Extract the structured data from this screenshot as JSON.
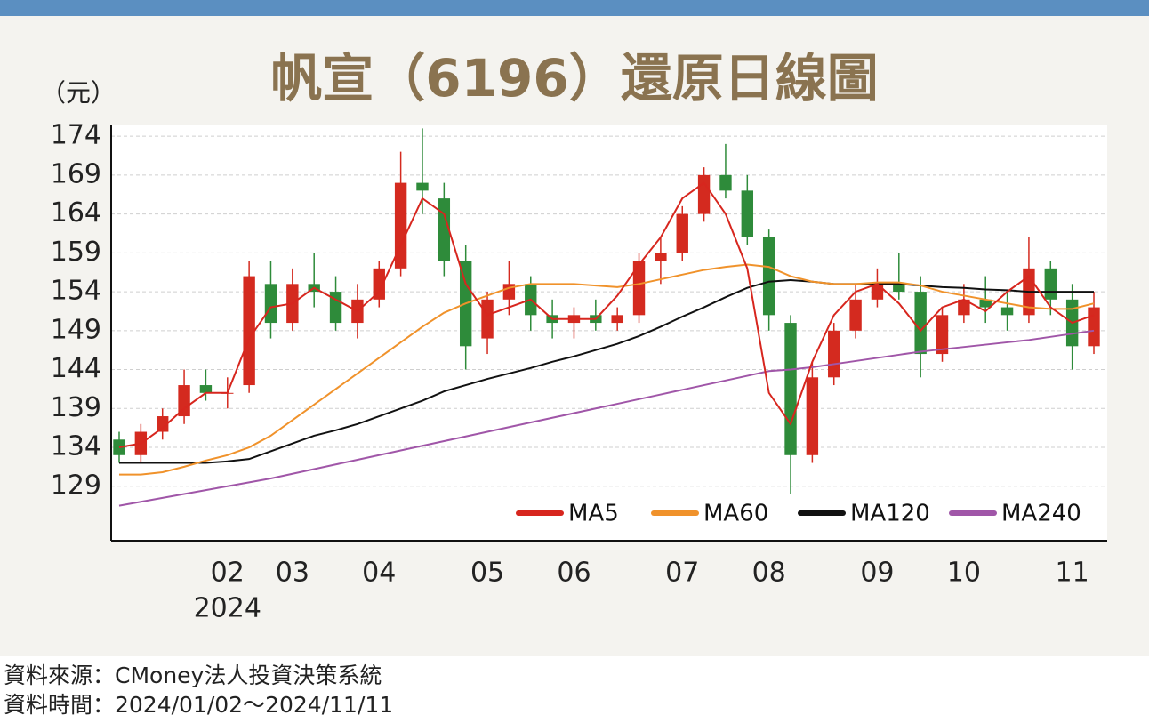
{
  "chart_data": {
    "type": "candlestick",
    "title": "帆宣（6196）還原日線圖",
    "unit_label": "（元）",
    "categories": [
      null,
      null,
      null,
      null,
      null,
      "02",
      null,
      null,
      "03",
      null,
      null,
      null,
      "04",
      null,
      null,
      null,
      null,
      "05",
      null,
      null,
      null,
      "06",
      null,
      null,
      null,
      null,
      "07",
      null,
      null,
      null,
      "08",
      null,
      null,
      null,
      null,
      "09",
      null,
      null,
      null,
      "10",
      null,
      null,
      null,
      null,
      "11",
      null
    ],
    "year_label": "2024",
    "open": [
      135,
      133,
      136,
      138,
      142,
      141,
      142,
      155,
      150,
      155,
      154,
      150,
      153,
      157,
      168,
      166,
      158,
      148,
      153,
      155,
      151,
      150,
      151,
      150,
      151,
      158,
      159,
      164,
      169,
      167,
      161,
      150,
      133,
      143,
      149,
      153,
      155,
      154,
      146,
      151,
      153,
      152,
      151,
      157,
      153,
      147
    ],
    "high": [
      136,
      137,
      139,
      144,
      144,
      143,
      158,
      158,
      157,
      159,
      156,
      155,
      158,
      172,
      175,
      168,
      160,
      154,
      158,
      156,
      153,
      152,
      153,
      152,
      159,
      161,
      165,
      170,
      173,
      169,
      162,
      151,
      145,
      150,
      155,
      157,
      159,
      156,
      152,
      155,
      156,
      154,
      161,
      158,
      155,
      154
    ],
    "low": [
      132,
      132,
      135,
      137,
      140,
      139,
      141,
      148,
      149,
      152,
      149,
      148,
      152,
      156,
      164,
      156,
      144,
      146,
      151,
      149,
      148,
      148,
      149,
      149,
      150,
      155,
      158,
      163,
      166,
      160,
      149,
      128,
      132,
      142,
      148,
      152,
      153,
      143,
      145,
      150,
      150,
      149,
      150,
      151,
      144,
      146
    ],
    "close": [
      133,
      136,
      138,
      142,
      141,
      141,
      156,
      150,
      155,
      154,
      150,
      153,
      157,
      168,
      167,
      158,
      147,
      153,
      155,
      151,
      150,
      151,
      150,
      151,
      158,
      159,
      164,
      169,
      167,
      161,
      151,
      133,
      143,
      149,
      153,
      155,
      154,
      146,
      151,
      153,
      152,
      151,
      157,
      153,
      147,
      152
    ],
    "up_color": "#d42a1f",
    "down_color": "#2e8b3a",
    "series": [
      {
        "name": "MA5",
        "color": "#d7261e",
        "values": [
          134,
          134.5,
          136.5,
          139,
          141,
          141,
          148,
          152,
          152.5,
          154.5,
          153,
          151.5,
          154,
          160,
          166,
          164,
          155,
          151,
          152,
          153,
          150.5,
          150.5,
          150.5,
          153.5,
          157.5,
          161,
          166,
          168,
          164,
          157,
          141,
          137,
          145,
          151,
          154,
          155,
          152.5,
          149,
          152,
          153,
          151.5,
          154,
          156,
          152,
          150,
          151
        ]
      },
      {
        "name": "MA60",
        "color": "#f0922b",
        "values": [
          130.5,
          130.5,
          130.8,
          131.5,
          132.3,
          133,
          134,
          135.5,
          137.5,
          139.5,
          141.5,
          143.5,
          145.5,
          147.5,
          149.5,
          151.3,
          152.5,
          153.5,
          154.5,
          155,
          155,
          155,
          154.8,
          154.6,
          155,
          155.6,
          156.2,
          156.8,
          157.2,
          157.5,
          157.2,
          156,
          155.3,
          155,
          155,
          155.2,
          155.2,
          154.8,
          154,
          153.5,
          153,
          152.5,
          152,
          151.8,
          151.8,
          152.5
        ]
      },
      {
        "name": "MA120",
        "color": "#111111",
        "values": [
          132,
          132,
          132,
          132,
          132,
          132.2,
          132.5,
          133.5,
          134.5,
          135.5,
          136.2,
          137,
          138,
          139,
          140,
          141.2,
          142,
          142.8,
          143.5,
          144.2,
          145,
          145.7,
          146.5,
          147.3,
          148.3,
          149.5,
          150.8,
          152,
          153.3,
          154.5,
          155.3,
          155.5,
          155.3,
          155,
          155,
          155,
          155,
          154.8,
          154.6,
          154.5,
          154.3,
          154.2,
          154,
          154,
          154,
          154
        ]
      },
      {
        "name": "MA240",
        "color": "#a056a8",
        "values": [
          126.5,
          127,
          127.5,
          128,
          128.5,
          129,
          129.5,
          130,
          130.6,
          131.2,
          131.8,
          132.4,
          133,
          133.6,
          134.2,
          134.8,
          135.4,
          136,
          136.6,
          137.2,
          137.8,
          138.4,
          139,
          139.6,
          140.2,
          140.8,
          141.4,
          142,
          142.6,
          143.2,
          143.8,
          144,
          144.3,
          144.7,
          145.1,
          145.5,
          145.9,
          146.3,
          146.6,
          146.9,
          147.2,
          147.5,
          147.8,
          148.2,
          148.6,
          149
        ]
      }
    ],
    "ylim": [
      122,
      175.5
    ],
    "yticks": [
      129,
      134,
      139,
      144,
      149,
      154,
      159,
      164,
      169,
      174
    ],
    "grid": true
  },
  "footer": {
    "source": "資料來源：CMoney法人投資決策系統",
    "period": "資料時間：2024/01/02～2024/11/11"
  }
}
